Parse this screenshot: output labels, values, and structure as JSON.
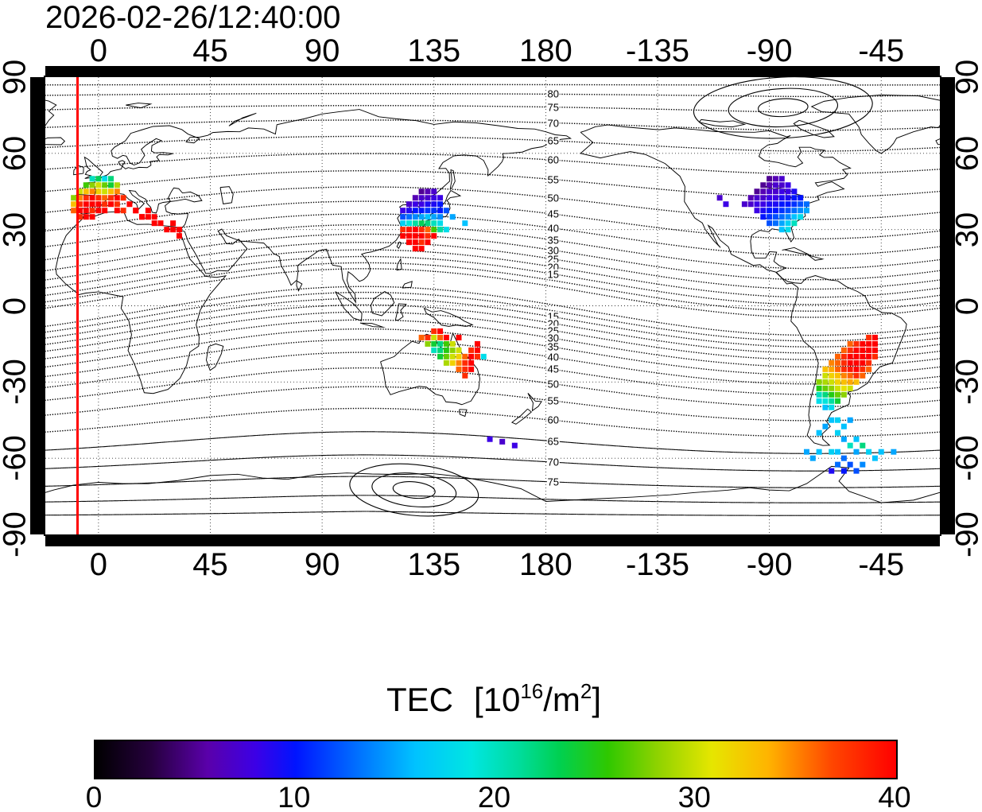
{
  "title": "2026-02-26/12:40:00",
  "axes": {
    "lon_tick_values": [
      0,
      45,
      90,
      135,
      180,
      -135,
      -90,
      -45
    ],
    "lat_tick_values": [
      90,
      60,
      30,
      0,
      -30,
      -60,
      -90
    ]
  },
  "map": {
    "lon_left_edge": -21.4,
    "time_marker_lon": -8.6
  },
  "contours": {
    "north_labels": [
      80,
      75,
      70,
      65,
      60,
      55,
      50,
      45,
      40,
      35,
      30,
      25,
      20,
      15
    ],
    "south_labels": [
      15,
      20,
      25,
      30,
      35,
      40,
      45,
      50,
      55,
      60,
      65,
      70,
      75
    ],
    "label_lon": 183
  },
  "colorbar": {
    "word": "TEC",
    "open": "[10",
    "exponent": "16",
    "mid": "/m",
    "exponent2": "2",
    "close": "]",
    "tick_values": [
      0,
      10,
      20,
      30,
      40
    ],
    "min": 0,
    "max": 40,
    "stops": [
      [
        0,
        "#000000"
      ],
      [
        0.07,
        "#26003e"
      ],
      [
        0.14,
        "#5a00aa"
      ],
      [
        0.2,
        "#3c00e6"
      ],
      [
        0.25,
        "#0014ff"
      ],
      [
        0.33,
        "#0073ff"
      ],
      [
        0.4,
        "#00c3ff"
      ],
      [
        0.47,
        "#00e6e1"
      ],
      [
        0.53,
        "#00dc9b"
      ],
      [
        0.58,
        "#00d050"
      ],
      [
        0.64,
        "#2fc800"
      ],
      [
        0.7,
        "#8cd200"
      ],
      [
        0.77,
        "#e6e600"
      ],
      [
        0.84,
        "#ffb400"
      ],
      [
        0.92,
        "#ff4600"
      ],
      [
        1,
        "#ff0000"
      ]
    ]
  },
  "colors": {
    "time_marker": "#ff0000",
    "coastline": "#000000",
    "contour": "#000000",
    "grid": "#333333",
    "frame": "#000000"
  },
  "chart_data": {
    "type": "heatmap",
    "title": "2026-02-26/12:40:00",
    "value_label": "TEC [10^16/m^2]",
    "value_range": [
      0,
      40
    ],
    "colorbar_ticks": [
      0,
      10,
      20,
      30,
      40
    ],
    "regions": [
      {
        "name": "europe",
        "lon0": -10,
        "lat0": 50,
        "dlon": 2.5,
        "dlat": 2.5,
        "values": [
          [
            null,
            null,
            null,
            20,
            23,
            18,
            22,
            null,
            null,
            null,
            null,
            null
          ],
          [
            null,
            null,
            26,
            28,
            30,
            27,
            24,
            29,
            null,
            null,
            null,
            null
          ],
          [
            null,
            30,
            33,
            35,
            32,
            30,
            33,
            35,
            null,
            null,
            null,
            null
          ],
          [
            28,
            35,
            38,
            40,
            38,
            36,
            38,
            40,
            38,
            null,
            null,
            null
          ],
          [
            33,
            38,
            40,
            40,
            40,
            38,
            40,
            38,
            null,
            40,
            null,
            null
          ],
          [
            36,
            40,
            40,
            38,
            40,
            40,
            null,
            40,
            38,
            null,
            40,
            null
          ],
          [
            null,
            38,
            40,
            40,
            null,
            null,
            null,
            null,
            null,
            null,
            null,
            40
          ]
        ]
      },
      {
        "name": "mediterranean-scatter",
        "lon0": 12.5,
        "lat0": 37.5,
        "dlon": 2.5,
        "dlat": 2.5,
        "values": [
          [
            null,
            40,
            null,
            40,
            null,
            null,
            null,
            null,
            null,
            null
          ],
          [
            null,
            null,
            40,
            40,
            40,
            null,
            null,
            null,
            null,
            null
          ],
          [
            null,
            null,
            null,
            null,
            40,
            40,
            null,
            40,
            null,
            null
          ],
          [
            null,
            null,
            null,
            null,
            null,
            null,
            40,
            40,
            40,
            null
          ],
          [
            null,
            null,
            null,
            null,
            null,
            null,
            null,
            null,
            40,
            null
          ]
        ]
      },
      {
        "name": "east-asia",
        "lon0": 122.5,
        "lat0": 45,
        "dlon": 2.5,
        "dlat": 2.5,
        "values": [
          [
            null,
            null,
            null,
            5,
            6,
            7,
            null,
            null,
            null,
            null,
            null
          ],
          [
            null,
            null,
            6,
            7,
            7,
            8,
            8,
            null,
            null,
            null,
            null
          ],
          [
            null,
            7,
            8,
            8,
            9,
            9,
            10,
            null,
            null,
            null,
            null
          ],
          [
            8,
            9,
            10,
            10,
            11,
            11,
            10,
            12,
            null,
            null,
            null
          ],
          [
            12,
            13,
            14,
            15,
            16,
            15,
            14,
            null,
            15,
            null,
            null
          ],
          [
            17,
            19,
            21,
            23,
            22,
            20,
            18,
            null,
            null,
            null,
            16
          ],
          [
            38,
            39,
            40,
            38,
            36,
            26,
            21,
            18,
            null,
            null,
            null
          ],
          [
            40,
            40,
            40,
            40,
            38,
            40,
            null,
            null,
            null,
            null,
            null
          ],
          [
            null,
            40,
            40,
            38,
            40,
            null,
            null,
            null,
            null,
            null,
            null
          ],
          [
            null,
            null,
            40,
            40,
            null,
            null,
            null,
            null,
            null,
            null,
            null
          ]
        ]
      },
      {
        "name": "north-america",
        "lon0": -100,
        "lat0": 50,
        "dlon": 2.5,
        "dlat": 2.5,
        "values": [
          [
            null,
            null,
            null,
            null,
            5,
            6,
            7,
            null,
            null,
            null,
            null,
            null,
            null
          ],
          [
            null,
            null,
            null,
            5,
            6,
            7,
            7,
            8,
            null,
            null,
            null,
            null,
            null
          ],
          [
            null,
            null,
            5,
            6,
            7,
            7,
            8,
            8,
            9,
            null,
            null,
            null,
            null
          ],
          [
            null,
            6,
            7,
            7,
            8,
            8,
            9,
            9,
            10,
            10,
            null,
            null,
            null
          ],
          [
            7,
            7,
            8,
            8,
            9,
            9,
            10,
            10,
            11,
            12,
            13,
            null,
            null
          ],
          [
            null,
            null,
            8,
            9,
            10,
            10,
            11,
            12,
            13,
            14,
            15,
            null,
            null
          ],
          [
            null,
            null,
            null,
            10,
            11,
            12,
            13,
            14,
            16,
            18,
            null,
            null,
            null
          ],
          [
            null,
            null,
            null,
            null,
            12,
            13,
            15,
            17,
            20,
            null,
            null,
            null,
            null
          ],
          [
            null,
            null,
            null,
            null,
            null,
            null,
            16,
            18,
            null,
            null,
            null,
            null,
            null
          ]
        ]
      },
      {
        "name": "north-america-west",
        "cells": [
          [
            -110,
            42.5,
            7
          ],
          [
            -107.5,
            40,
            8
          ]
        ]
      },
      {
        "name": "australia",
        "lon0": 130,
        "lat0": -10,
        "dlon": 2.5,
        "dlat": 2.5,
        "values": [
          [
            null,
            null,
            38,
            40,
            null,
            null,
            null,
            null,
            null,
            null,
            null
          ],
          [
            36,
            38,
            30,
            36,
            40,
            null,
            40,
            null,
            null,
            null,
            null
          ],
          [
            null,
            28,
            24,
            22,
            26,
            30,
            null,
            null,
            null,
            40,
            null
          ],
          [
            null,
            null,
            20,
            22,
            25,
            28,
            30,
            null,
            38,
            40,
            null
          ],
          [
            null,
            null,
            null,
            24,
            27,
            30,
            32,
            36,
            40,
            38,
            18
          ],
          [
            null,
            null,
            null,
            null,
            29,
            32,
            35,
            38,
            40,
            null,
            null
          ],
          [
            null,
            null,
            null,
            null,
            null,
            null,
            36,
            38,
            40,
            null,
            null
          ],
          [
            null,
            null,
            null,
            null,
            null,
            null,
            null,
            38,
            null,
            null,
            null
          ]
        ]
      },
      {
        "name": "tasman-sea",
        "cells": [
          [
            157.5,
            -52.5,
            8
          ],
          [
            162.5,
            -53.5,
            7
          ],
          [
            167.5,
            -55,
            8
          ]
        ]
      },
      {
        "name": "south-america",
        "lon0": -72.5,
        "lat0": -12.5,
        "dlon": 2.5,
        "dlat": 2.5,
        "values": [
          [
            null,
            null,
            null,
            null,
            null,
            null,
            null,
            null,
            null,
            38,
            40,
            null
          ],
          [
            null,
            null,
            null,
            null,
            null,
            null,
            36,
            38,
            40,
            40,
            40,
            null
          ],
          [
            null,
            null,
            null,
            null,
            null,
            36,
            38,
            40,
            40,
            40,
            40,
            null
          ],
          [
            null,
            null,
            null,
            null,
            36,
            38,
            40,
            40,
            40,
            40,
            38,
            null
          ],
          [
            null,
            null,
            null,
            35,
            36,
            38,
            40,
            40,
            40,
            38,
            null,
            null
          ],
          [
            null,
            null,
            33,
            34,
            36,
            38,
            39,
            40,
            38,
            36,
            null,
            null
          ],
          [
            null,
            null,
            30,
            32,
            33,
            35,
            36,
            38,
            36,
            null,
            null,
            null
          ],
          [
            null,
            28,
            29,
            30,
            32,
            33,
            34,
            33,
            null,
            null,
            null,
            null
          ],
          [
            null,
            25,
            27,
            28,
            30,
            31,
            30,
            null,
            null,
            null,
            null,
            null
          ],
          [
            null,
            20,
            22,
            25,
            27,
            28,
            null,
            null,
            null,
            null,
            null,
            null
          ],
          [
            null,
            18,
            19,
            21,
            24,
            null,
            null,
            null,
            null,
            null,
            null,
            null
          ],
          [
            null,
            null,
            16,
            18,
            null,
            null,
            null,
            null,
            null,
            null,
            null,
            null
          ]
        ]
      },
      {
        "name": "southern-ocean-sa",
        "cells": [
          [
            -65,
            -45,
            16
          ],
          [
            -62.5,
            -45,
            17
          ],
          [
            -57.5,
            -45,
            15
          ],
          [
            -67.5,
            -47.5,
            15
          ],
          [
            -60,
            -47.5,
            16
          ],
          [
            -70,
            -50,
            16
          ],
          [
            -62.5,
            -50,
            17
          ],
          [
            -60,
            -52.5,
            15
          ],
          [
            -55,
            -52.5,
            16
          ],
          [
            -57.5,
            -55,
            20
          ],
          [
            -52.5,
            -55,
            22
          ],
          [
            -75,
            -57.5,
            15
          ],
          [
            -70,
            -57.5,
            16
          ],
          [
            -65,
            -57.5,
            17
          ],
          [
            -62.5,
            -57.5,
            16
          ],
          [
            -55,
            -57.5,
            15
          ],
          [
            -50,
            -57.5,
            17
          ],
          [
            -45,
            -57.5,
            16
          ],
          [
            -40,
            -57.5,
            15
          ],
          [
            -72.5,
            -60,
            15
          ],
          [
            -60,
            -60,
            13
          ],
          [
            -47.5,
            -60,
            16
          ],
          [
            -62.5,
            -62.5,
            13
          ],
          [
            -57.5,
            -62.5,
            12
          ],
          [
            -52.5,
            -62.5,
            14
          ],
          [
            -60,
            -65,
            10
          ],
          [
            -55,
            -65,
            12
          ],
          [
            -65,
            -65,
            9
          ]
        ]
      }
    ]
  }
}
